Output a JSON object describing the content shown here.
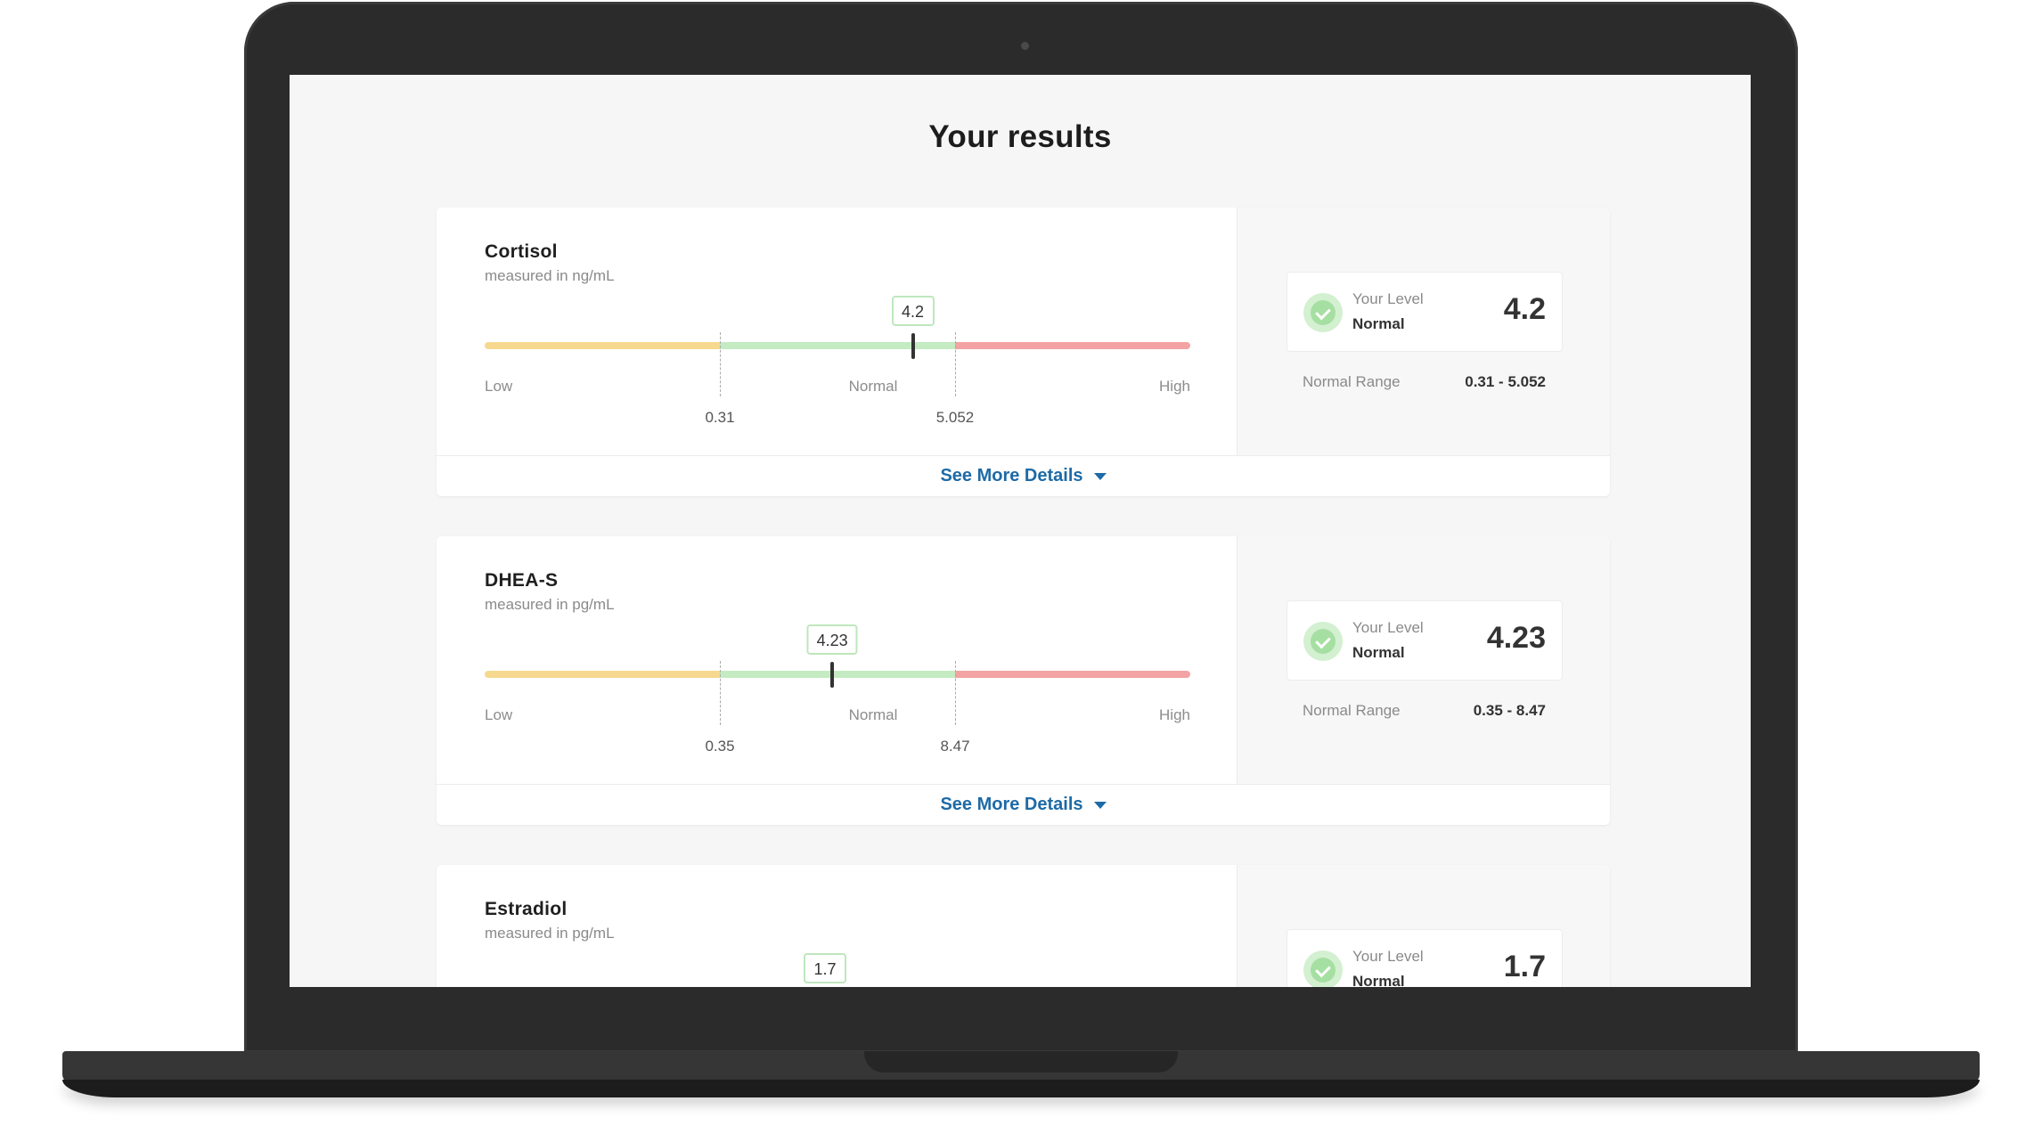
{
  "page": {
    "title": "Your results"
  },
  "results": [
    {
      "name": "Cortisol",
      "unit": "measured in ng/mL",
      "value": 4.2,
      "value_label": "4.2",
      "range_low": 0.31,
      "range_high": 5.052,
      "range_low_label": "0.31",
      "range_high_label": "5.052",
      "zone_low": "Low",
      "zone_normal": "Normal",
      "zone_high": "High",
      "level_caption": "Your Level",
      "level_status": "Normal",
      "range_caption": "Normal Range",
      "range_text": "0.31 - 5.052",
      "details_label": "See More Details"
    },
    {
      "name": "DHEA-S",
      "unit": "measured in pg/mL",
      "value": 4.23,
      "value_label": "4.23",
      "range_low": 0.35,
      "range_high": 8.47,
      "range_low_label": "0.35",
      "range_high_label": "8.47",
      "zone_low": "Low",
      "zone_normal": "Normal",
      "zone_high": "High",
      "level_caption": "Your Level",
      "level_status": "Normal",
      "range_caption": "Normal Range",
      "range_text": "0.35 - 8.47",
      "details_label": "See More Details"
    },
    {
      "name": "Estradiol",
      "unit": "measured in pg/mL",
      "value": 1.7,
      "value_label": "1.7",
      "level_caption": "Your Level",
      "level_status": "Normal"
    }
  ],
  "colors": {
    "low_zone": "#f6d98f",
    "normal_zone": "#c4ebc1",
    "high_zone": "#f3a3a3",
    "link": "#1e6aa6"
  }
}
